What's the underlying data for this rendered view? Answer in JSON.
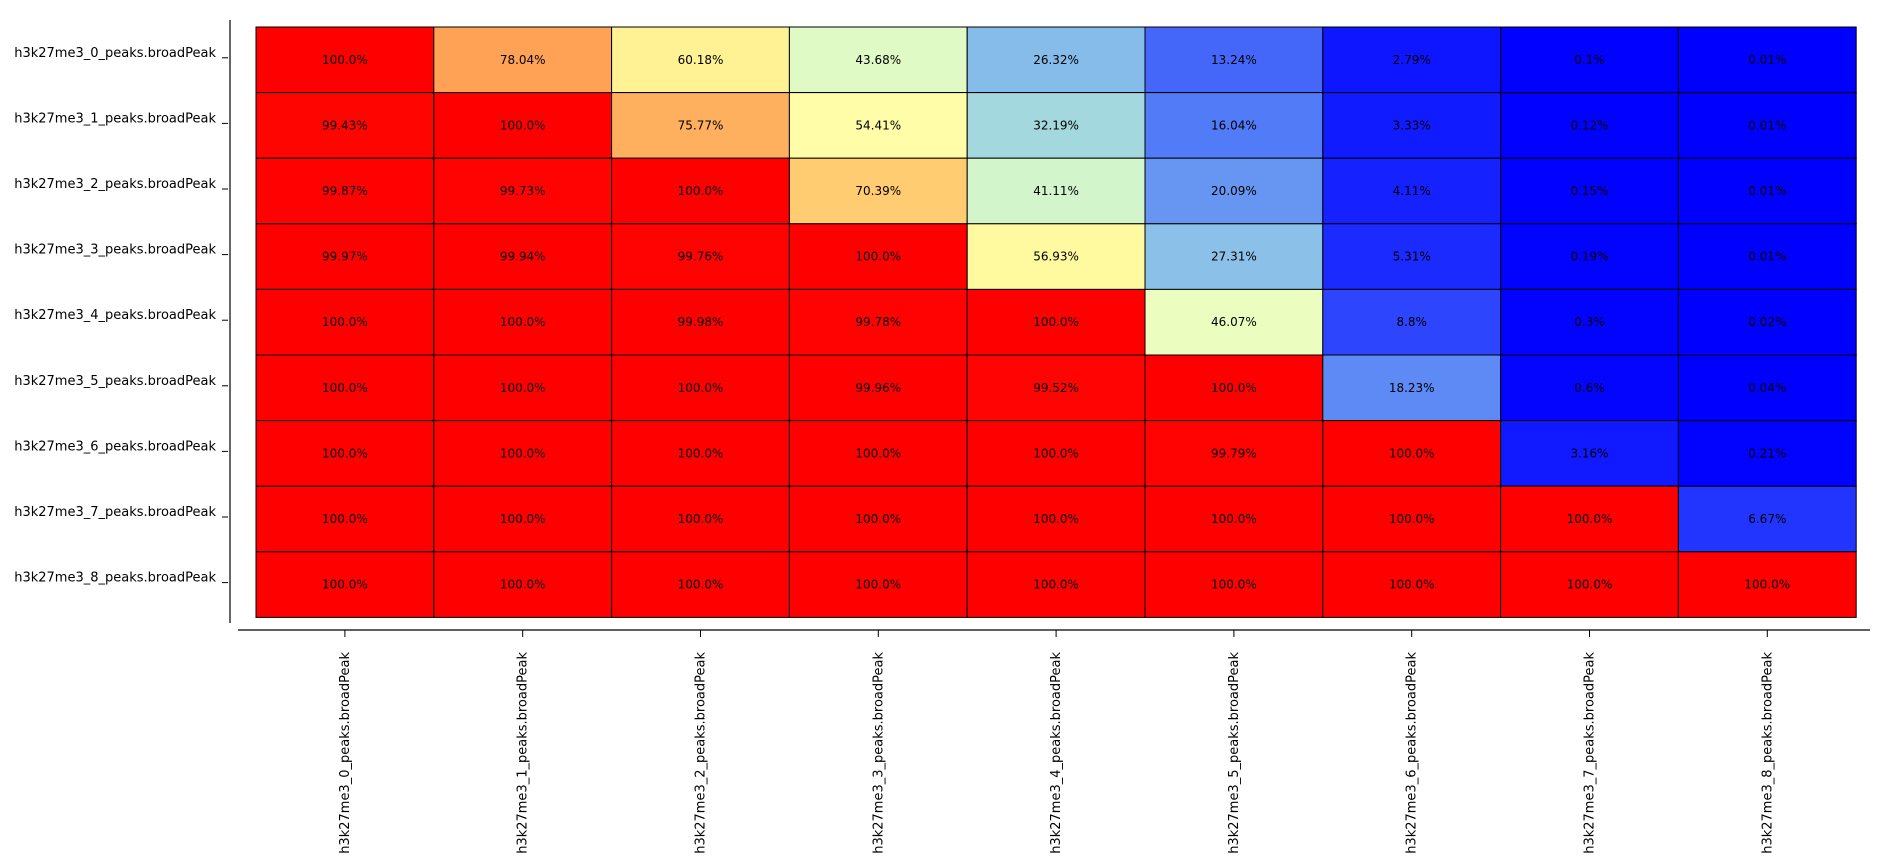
{
  "chart_data": {
    "type": "heatmap",
    "rows": [
      "h3k27me3_0_peaks.broadPeak",
      "h3k27me3_1_peaks.broadPeak",
      "h3k27me3_2_peaks.broadPeak",
      "h3k27me3_3_peaks.broadPeak",
      "h3k27me3_4_peaks.broadPeak",
      "h3k27me3_5_peaks.broadPeak",
      "h3k27me3_6_peaks.broadPeak",
      "h3k27me3_7_peaks.broadPeak",
      "h3k27me3_8_peaks.broadPeak"
    ],
    "columns": [
      "h3k27me3_0_peaks.broadPeak",
      "h3k27me3_1_peaks.broadPeak",
      "h3k27me3_2_peaks.broadPeak",
      "h3k27me3_3_peaks.broadPeak",
      "h3k27me3_4_peaks.broadPeak",
      "h3k27me3_5_peaks.broadPeak",
      "h3k27me3_6_peaks.broadPeak",
      "h3k27me3_7_peaks.broadPeak",
      "h3k27me3_8_peaks.broadPeak"
    ],
    "values": [
      [
        100.0,
        78.04,
        60.18,
        43.68,
        26.32,
        13.24,
        2.79,
        0.1,
        0.01
      ],
      [
        99.43,
        100.0,
        75.77,
        54.41,
        32.19,
        16.04,
        3.33,
        0.12,
        0.01
      ],
      [
        99.87,
        99.73,
        100.0,
        70.39,
        41.11,
        20.09,
        4.11,
        0.15,
        0.01
      ],
      [
        99.97,
        99.94,
        99.76,
        100.0,
        56.93,
        27.31,
        5.31,
        0.19,
        0.01
      ],
      [
        100.0,
        100.0,
        99.98,
        99.78,
        100.0,
        46.07,
        8.8,
        0.3,
        0.02
      ],
      [
        100.0,
        100.0,
        100.0,
        99.96,
        99.52,
        100.0,
        18.23,
        0.6,
        0.04
      ],
      [
        100.0,
        100.0,
        100.0,
        100.0,
        100.0,
        99.79,
        100.0,
        3.16,
        0.21
      ],
      [
        100.0,
        100.0,
        100.0,
        100.0,
        100.0,
        100.0,
        100.0,
        100.0,
        6.67
      ],
      [
        100.0,
        100.0,
        100.0,
        100.0,
        100.0,
        100.0,
        100.0,
        100.0,
        100.0
      ]
    ],
    "value_labels": [
      [
        "100.0%",
        "78.04%",
        "60.18%",
        "43.68%",
        "26.32%",
        "13.24%",
        "2.79%",
        "0.1%",
        "0.01%"
      ],
      [
        "99.43%",
        "100.0%",
        "75.77%",
        "54.41%",
        "32.19%",
        "16.04%",
        "3.33%",
        "0.12%",
        "0.01%"
      ],
      [
        "99.87%",
        "99.73%",
        "100.0%",
        "70.39%",
        "41.11%",
        "20.09%",
        "4.11%",
        "0.15%",
        "0.01%"
      ],
      [
        "99.97%",
        "99.94%",
        "99.76%",
        "100.0%",
        "56.93%",
        "27.31%",
        "5.31%",
        "0.19%",
        "0.01%"
      ],
      [
        "100.0%",
        "100.0%",
        "99.98%",
        "99.78%",
        "100.0%",
        "46.07%",
        "8.8%",
        "0.3%",
        "0.02%"
      ],
      [
        "100.0%",
        "100.0%",
        "100.0%",
        "99.96%",
        "99.52%",
        "100.0%",
        "18.23%",
        "0.6%",
        "0.04%"
      ],
      [
        "100.0%",
        "100.0%",
        "100.0%",
        "100.0%",
        "100.0%",
        "99.79%",
        "100.0%",
        "3.16%",
        "0.21%"
      ],
      [
        "100.0%",
        "100.0%",
        "100.0%",
        "100.0%",
        "100.0%",
        "100.0%",
        "100.0%",
        "100.0%",
        "6.67%"
      ],
      [
        "100.0%",
        "100.0%",
        "100.0%",
        "100.0%",
        "100.0%",
        "100.0%",
        "100.0%",
        "100.0%",
        "100.0%"
      ]
    ],
    "value_range": [
      0,
      100
    ],
    "colormap": "rainbow",
    "grid": true
  }
}
